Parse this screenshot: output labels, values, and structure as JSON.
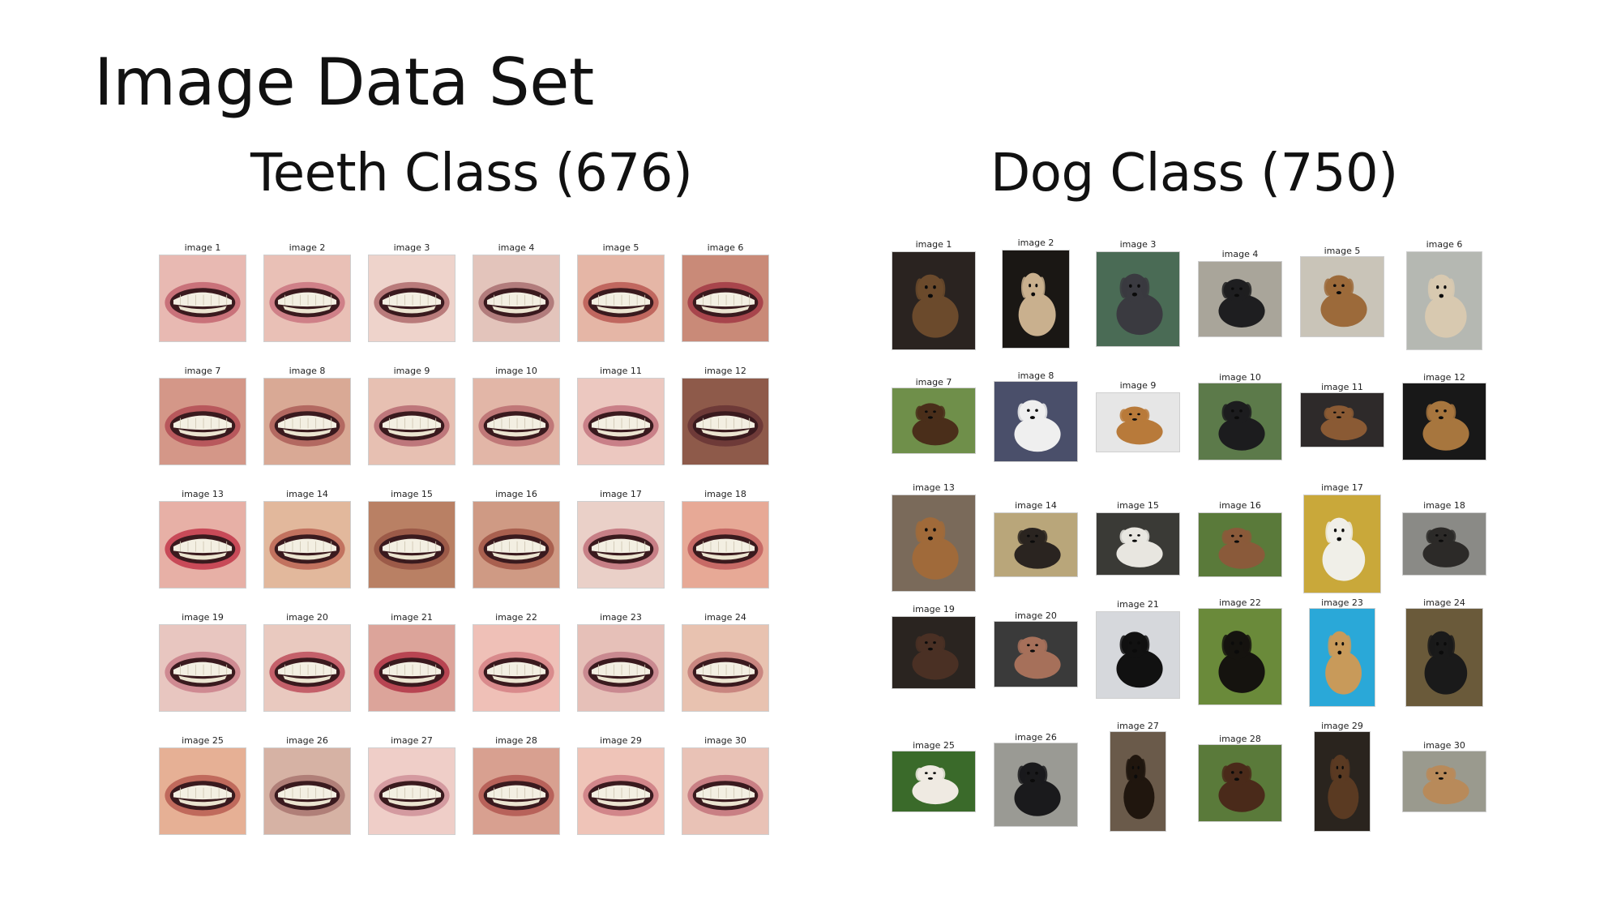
{
  "slide": {
    "title": "Image Data Set"
  },
  "teeth_panel": {
    "title": "Teeth Class (676)",
    "images": [
      {
        "label": "image 1",
        "skin": "#e8b9b2",
        "lip": "#c9727a"
      },
      {
        "label": "image 2",
        "skin": "#e9c0b6",
        "lip": "#cf8088"
      },
      {
        "label": "image 3",
        "skin": "#eed3cb",
        "lip": "#b97b7b"
      },
      {
        "label": "image 4",
        "skin": "#e3c4bb",
        "lip": "#b27c7c"
      },
      {
        "label": "image 5",
        "skin": "#e5b6a6",
        "lip": "#c0675f"
      },
      {
        "label": "image 6",
        "skin": "#c98a78",
        "lip": "#a8454c"
      },
      {
        "label": "image 7",
        "skin": "#d49788",
        "lip": "#b8585c"
      },
      {
        "label": "image 8",
        "skin": "#d9a995",
        "lip": "#b36961"
      },
      {
        "label": "image 9",
        "skin": "#e7c0b2",
        "lip": "#be777b"
      },
      {
        "label": "image 10",
        "skin": "#e2b6a7",
        "lip": "#c07878"
      },
      {
        "label": "image 11",
        "skin": "#ecc8c0",
        "lip": "#c98088"
      },
      {
        "label": "image 12",
        "skin": "#8e5a4a",
        "lip": "#6e3a38"
      },
      {
        "label": "image 13",
        "skin": "#e7b0a6",
        "lip": "#c84a58"
      },
      {
        "label": "image 14",
        "skin": "#e2b89c",
        "lip": "#c2725f"
      },
      {
        "label": "image 15",
        "skin": "#b98064",
        "lip": "#9c5a48"
      },
      {
        "label": "image 16",
        "skin": "#cf9a84",
        "lip": "#a9604f"
      },
      {
        "label": "image 17",
        "skin": "#ead0c8",
        "lip": "#c77f86"
      },
      {
        "label": "image 18",
        "skin": "#e7a996",
        "lip": "#c76a66"
      },
      {
        "label": "image 19",
        "skin": "#e8c6c0",
        "lip": "#cf8a92"
      },
      {
        "label": "image 20",
        "skin": "#e9c9bf",
        "lip": "#c4606a"
      },
      {
        "label": "image 21",
        "skin": "#dca49a",
        "lip": "#b84552"
      },
      {
        "label": "image 22",
        "skin": "#efc0b7",
        "lip": "#d98a8c"
      },
      {
        "label": "image 23",
        "skin": "#e6c0b8",
        "lip": "#c98990"
      },
      {
        "label": "image 24",
        "skin": "#e8c2b0",
        "lip": "#c98680"
      },
      {
        "label": "image 25",
        "skin": "#e6b095",
        "lip": "#c06a5c"
      },
      {
        "label": "image 26",
        "skin": "#d6b2a4",
        "lip": "#b07f78"
      },
      {
        "label": "image 27",
        "skin": "#efcec8",
        "lip": "#d49aa0"
      },
      {
        "label": "image 28",
        "skin": "#d8a090",
        "lip": "#b8625a"
      },
      {
        "label": "image 29",
        "skin": "#efc4b8",
        "lip": "#d2868a"
      },
      {
        "label": "image 30",
        "skin": "#e9c2b6",
        "lip": "#c97f84"
      }
    ]
  },
  "dog_panel": {
    "title": "Dog Class (750)",
    "images": [
      {
        "label": "image 1",
        "bg": "#2a2320",
        "dog": "#6b4a2c"
      },
      {
        "label": "image 2",
        "bg": "#1a1714",
        "dog": "#c9b08e"
      },
      {
        "label": "image 3",
        "bg": "#4a6b55",
        "dog": "#3a3a40"
      },
      {
        "label": "image 4",
        "bg": "#a9a59a",
        "dog": "#1e1e20"
      },
      {
        "label": "image 5",
        "bg": "#c9c4b8",
        "dog": "#9c6a3a"
      },
      {
        "label": "image 6",
        "bg": "#b5b8b2",
        "dog": "#d8c9b0"
      },
      {
        "label": "image 7",
        "bg": "#6f8f4a",
        "dog": "#4a2e1a"
      },
      {
        "label": "image 8",
        "bg": "#4a4f6a",
        "dog": "#efefef"
      },
      {
        "label": "image 9",
        "bg": "#e6e6e6",
        "dog": "#b87a3a"
      },
      {
        "label": "image 10",
        "bg": "#5c7a4a",
        "dog": "#1c1c1e"
      },
      {
        "label": "image 11",
        "bg": "#2e2a2a",
        "dog": "#8a5a34"
      },
      {
        "label": "image 12",
        "bg": "#181818",
        "dog": "#a7763e"
      },
      {
        "label": "image 13",
        "bg": "#7a6a5a",
        "dog": "#a06a3a"
      },
      {
        "label": "image 14",
        "bg": "#b9a67a",
        "dog": "#2a2420"
      },
      {
        "label": "image 15",
        "bg": "#3a3a36",
        "dog": "#e8e6e0"
      },
      {
        "label": "image 16",
        "bg": "#5a7a3a",
        "dog": "#8a5a3a"
      },
      {
        "label": "image 17",
        "bg": "#c9a83a",
        "dog": "#f0efe8"
      },
      {
        "label": "image 18",
        "bg": "#8a8a86",
        "dog": "#2c2a28"
      },
      {
        "label": "image 19",
        "bg": "#2a2420",
        "dog": "#4a3024"
      },
      {
        "label": "image 20",
        "bg": "#3a3a3a",
        "dog": "#a6705a"
      },
      {
        "label": "image 21",
        "bg": "#d6d8dc",
        "dog": "#111111"
      },
      {
        "label": "image 22",
        "bg": "#6a8a3a",
        "dog": "#15130f"
      },
      {
        "label": "image 23",
        "bg": "#2aa8d8",
        "dog": "#c89a5a"
      },
      {
        "label": "image 24",
        "bg": "#6a5a3a",
        "dog": "#1a1a1a"
      },
      {
        "label": "image 25",
        "bg": "#3a6a2a",
        "dog": "#efeae2"
      },
      {
        "label": "image 26",
        "bg": "#9a9a94",
        "dog": "#1a1a1c"
      },
      {
        "label": "image 27",
        "bg": "#6a5a4a",
        "dog": "#20160e"
      },
      {
        "label": "image 28",
        "bg": "#5a7a3a",
        "dog": "#4a2a1a"
      },
      {
        "label": "image 29",
        "bg": "#2a241e",
        "dog": "#5a3a22"
      },
      {
        "label": "image 30",
        "bg": "#9a9a8e",
        "dog": "#b88a5a"
      }
    ]
  }
}
